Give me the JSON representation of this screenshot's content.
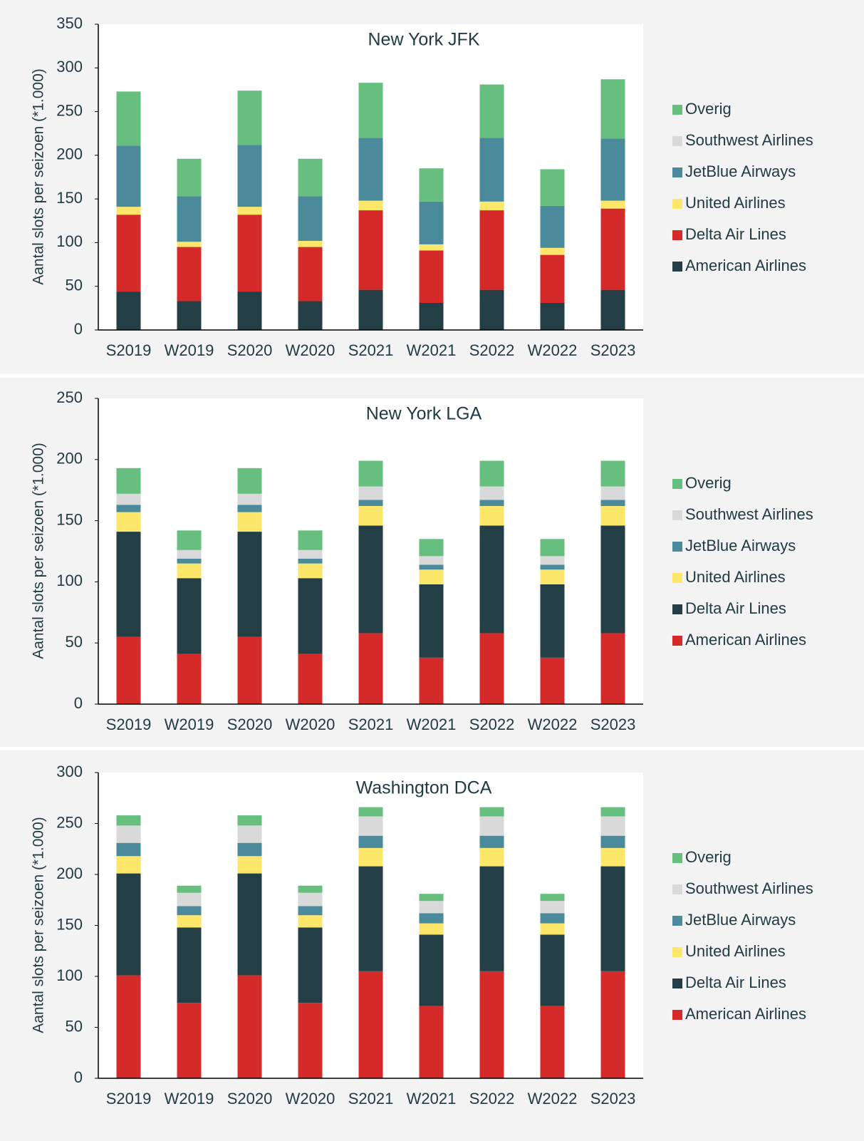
{
  "chart_data": [
    {
      "type": "stacked_bar",
      "title": "New York JFK",
      "y_label": "Aantal slots per seizoen (*1.000)",
      "categories": [
        "S2019",
        "W2019",
        "S2020",
        "W2020",
        "S2021",
        "W2021",
        "S2022",
        "W2022",
        "S2023"
      ],
      "series": [
        {
          "name": "American Airlines",
          "color": "#233f45",
          "values": [
            44,
            33,
            44,
            33,
            46,
            31,
            46,
            31,
            46
          ]
        },
        {
          "name": "Delta Air Lines",
          "color": "#d42a2a",
          "values": [
            88,
            62,
            88,
            62,
            91,
            60,
            91,
            55,
            93
          ]
        },
        {
          "name": "United Airlines",
          "color": "#fde76a",
          "values": [
            9,
            6,
            9,
            7,
            11,
            7,
            10,
            8,
            9
          ]
        },
        {
          "name": "JetBlue Airways",
          "color": "#4a8a9a",
          "values": [
            70,
            52,
            71,
            51,
            72,
            49,
            73,
            48,
            71
          ]
        },
        {
          "name": "Southwest Airlines",
          "color": "#d9d9d9",
          "values": [
            0,
            0,
            0,
            0,
            0,
            0,
            0,
            0,
            0
          ]
        },
        {
          "name": "Overig",
          "color": "#66bf7e",
          "values": [
            62,
            43,
            62,
            43,
            63,
            38,
            61,
            42,
            68
          ]
        }
      ],
      "ylim": [
        0,
        350
      ],
      "yticks": [
        0,
        50,
        100,
        150,
        200,
        250,
        300,
        350
      ]
    },
    {
      "type": "stacked_bar",
      "title": "New York LGA",
      "y_label": "Aantal slots per seizoen (*1.000)",
      "categories": [
        "S2019",
        "W2019",
        "S2020",
        "W2020",
        "S2021",
        "W2021",
        "S2022",
        "W2022",
        "S2023"
      ],
      "series": [
        {
          "name": "American Airlines",
          "color": "#d42a2a",
          "values": [
            55,
            41,
            55,
            41,
            58,
            38,
            58,
            38,
            58
          ]
        },
        {
          "name": "Delta Air Lines",
          "color": "#233f45",
          "values": [
            86,
            62,
            86,
            62,
            88,
            60,
            88,
            60,
            88
          ]
        },
        {
          "name": "United Airlines",
          "color": "#fde76a",
          "values": [
            16,
            12,
            16,
            12,
            16,
            12,
            16,
            12,
            16
          ]
        },
        {
          "name": "JetBlue Airways",
          "color": "#4a8a9a",
          "values": [
            6,
            4,
            6,
            4,
            5,
            4,
            5,
            4,
            5
          ]
        },
        {
          "name": "Southwest Airlines",
          "color": "#d9d9d9",
          "values": [
            9,
            7,
            9,
            7,
            11,
            7,
            11,
            7,
            11
          ]
        },
        {
          "name": "Overig",
          "color": "#66bf7e",
          "values": [
            21,
            16,
            21,
            16,
            21,
            14,
            21,
            14,
            21
          ]
        }
      ],
      "ylim": [
        0,
        250
      ],
      "yticks": [
        0,
        50,
        100,
        150,
        200,
        250
      ]
    },
    {
      "type": "stacked_bar",
      "title": "Washington DCA",
      "y_label": "Aantal slots per seizoen (*1.000)",
      "categories": [
        "S2019",
        "W2019",
        "S2020",
        "W2020",
        "S2021",
        "W2021",
        "S2022",
        "W2022",
        "S2023"
      ],
      "series": [
        {
          "name": "American Airlines",
          "color": "#d42a2a",
          "values": [
            101,
            74,
            101,
            74,
            105,
            71,
            105,
            71,
            105
          ]
        },
        {
          "name": "Delta Air Lines",
          "color": "#233f45",
          "values": [
            100,
            74,
            100,
            74,
            103,
            70,
            103,
            70,
            103
          ]
        },
        {
          "name": "United Airlines",
          "color": "#fde76a",
          "values": [
            17,
            12,
            17,
            12,
            18,
            11,
            18,
            11,
            18
          ]
        },
        {
          "name": "JetBlue Airways",
          "color": "#4a8a9a",
          "values": [
            13,
            9,
            13,
            9,
            12,
            10,
            12,
            10,
            12
          ]
        },
        {
          "name": "Southwest Airlines",
          "color": "#d9d9d9",
          "values": [
            17,
            13,
            17,
            13,
            19,
            12,
            19,
            12,
            19
          ]
        },
        {
          "name": "Overig",
          "color": "#66bf7e",
          "values": [
            10,
            7,
            10,
            7,
            9,
            7,
            9,
            7,
            9
          ]
        }
      ],
      "ylim": [
        0,
        300
      ],
      "yticks": [
        0,
        50,
        100,
        150,
        200,
        250,
        300
      ]
    }
  ]
}
